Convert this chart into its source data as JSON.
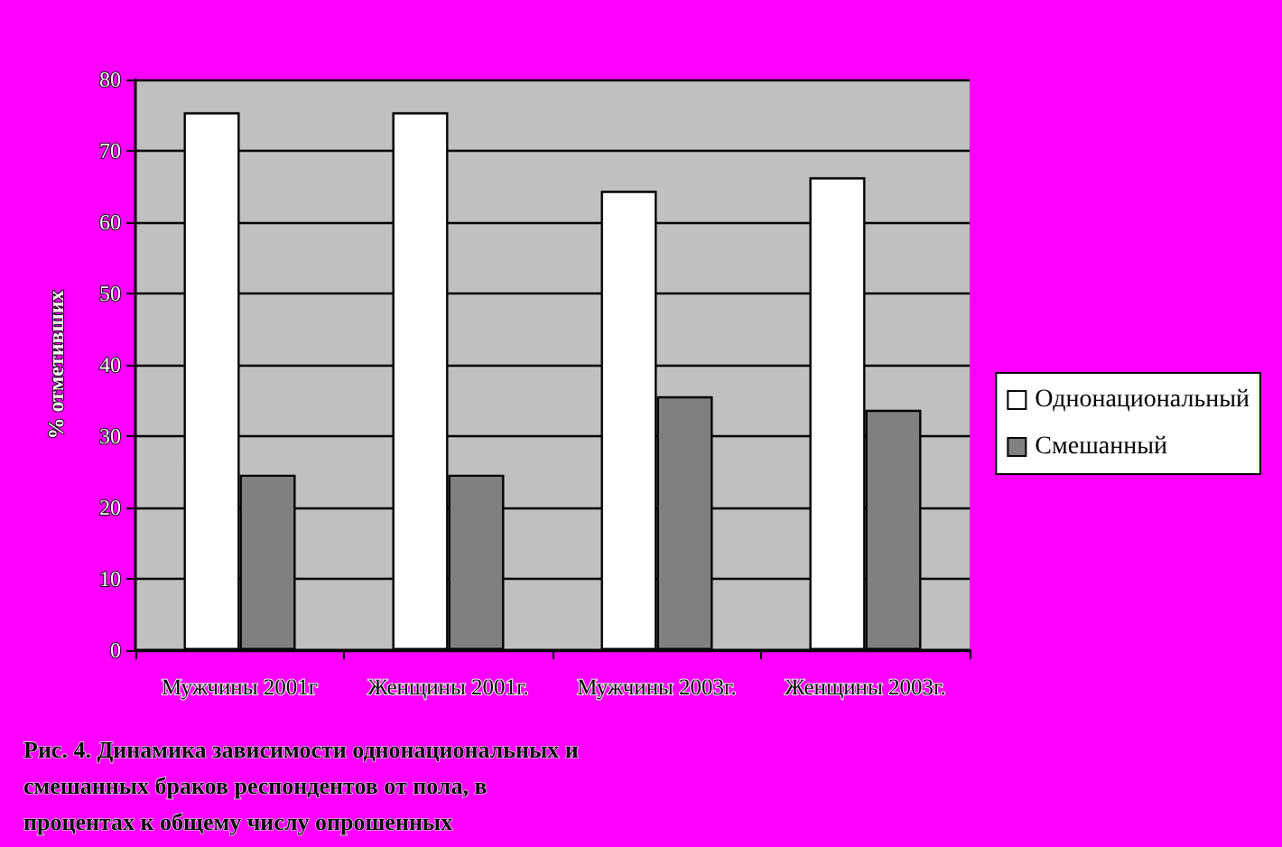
{
  "chart_data": {
    "type": "bar",
    "ylabel": "% отметивших",
    "categories": [
      "Мужчины 2001г",
      "Женщины 2001г.",
      "Мужчины 2003г.",
      "Женщины 2003г."
    ],
    "series": [
      {
        "name": "Однонациональный",
        "color": "#ffffff",
        "values": [
          75.4,
          75.4,
          64.4,
          66.3
        ]
      },
      {
        "name": "Смешанный",
        "color": "#808080",
        "values": [
          24.6,
          24.6,
          35.6,
          33.7
        ]
      }
    ],
    "ylim": [
      0,
      80
    ],
    "yticks": [
      0,
      10,
      20,
      30,
      40,
      50,
      60,
      70,
      80
    ],
    "grid": "y",
    "legend": "right",
    "annotations": [
      "Рис. 4. Динамика зависимости однонациональных и смешанных браков респондентов от пола, в процентах к общему числу опрошенных"
    ]
  }
}
